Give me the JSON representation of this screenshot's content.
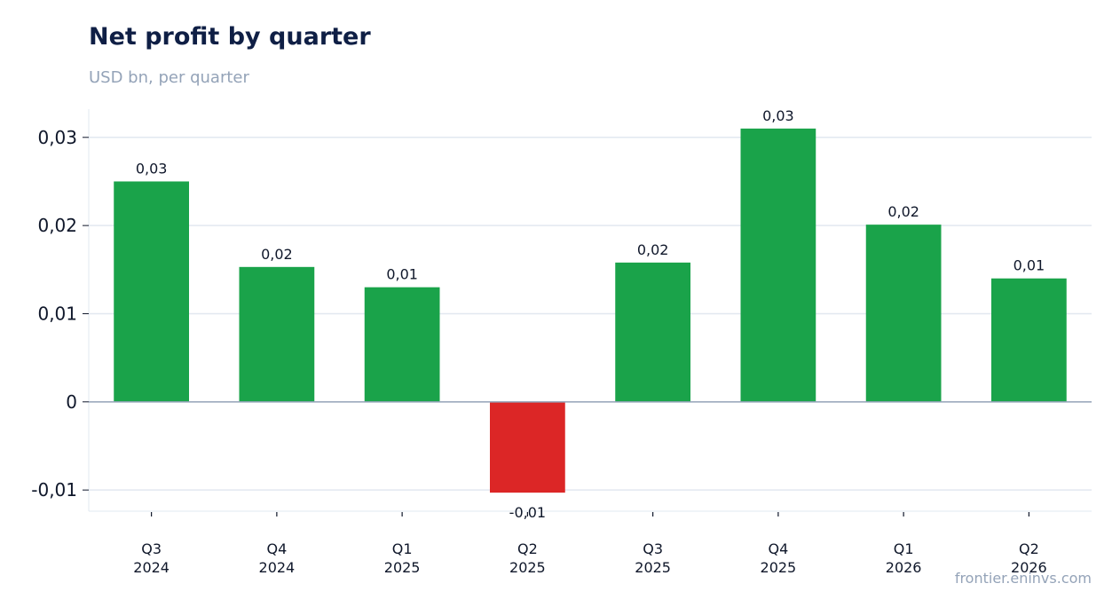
{
  "header": {
    "title": "Net profit by quarter",
    "subtitle": "USD bn, per quarter"
  },
  "footer": {
    "source": "frontier.eninvs.com"
  },
  "colors": {
    "positive": "#1aa34a",
    "negative": "#dc2626",
    "grid": "#e2e8f0",
    "zero_line": "#94a3b8",
    "title": "#0f1f45",
    "muted": "#94a3b8"
  },
  "chart_data": {
    "type": "bar",
    "title": "Net profit by quarter",
    "subtitle": "USD bn, per quarter",
    "categories": [
      [
        "Q3",
        "2024"
      ],
      [
        "Q4",
        "2024"
      ],
      [
        "Q1",
        "2025"
      ],
      [
        "Q2",
        "2025"
      ],
      [
        "Q3",
        "2025"
      ],
      [
        "Q4",
        "2025"
      ],
      [
        "Q1",
        "2026"
      ],
      [
        "Q2",
        "2026"
      ]
    ],
    "values": [
      0.025,
      0.0153,
      0.013,
      -0.0103,
      0.0158,
      0.031,
      0.0201,
      0.014
    ],
    "data_labels": [
      "0,03",
      "0,02",
      "0,01",
      "-0,01",
      "0,02",
      "0,03",
      "0,02",
      "0,01"
    ],
    "y_ticks": [
      {
        "value": 0.03,
        "label": "0,03"
      },
      {
        "value": 0.02,
        "label": "0,02"
      },
      {
        "value": 0.01,
        "label": "0,01"
      },
      {
        "value": 0,
        "label": "0"
      },
      {
        "value": -0.01,
        "label": "-0,01"
      }
    ],
    "ylim": [
      -0.0124,
      0.0332
    ],
    "xlabel": "",
    "ylabel": "",
    "grid": true,
    "legend": "none"
  }
}
